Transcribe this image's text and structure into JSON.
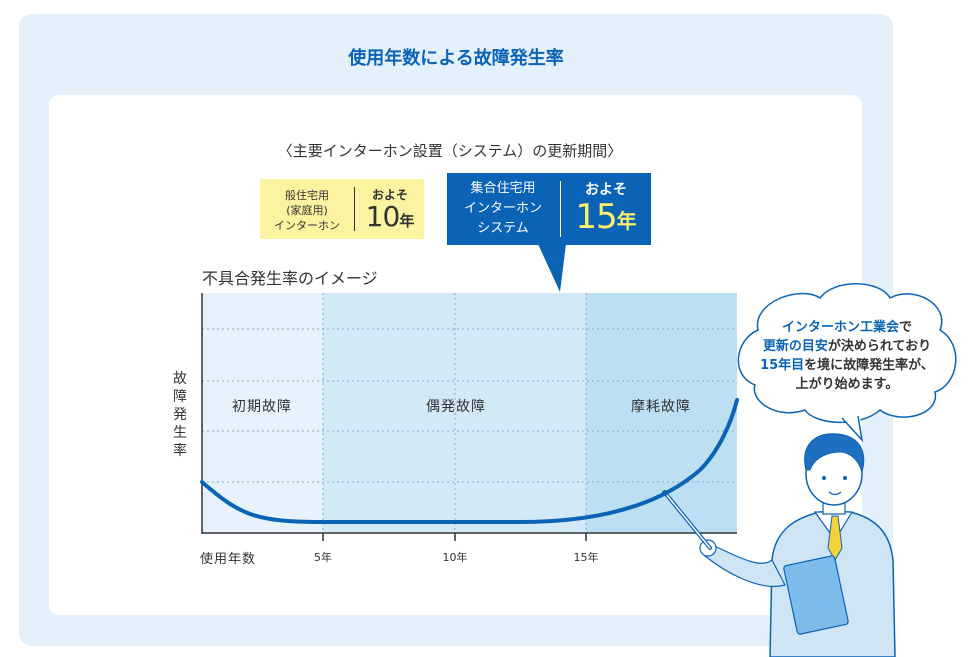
{
  "title": "使用年数による故障発生率",
  "subtitle": "〈主要インターホン設置（システム）の更新期間〉",
  "general_box": {
    "label_lines": [
      "般住宅用",
      "(家庭用)",
      "インターホン"
    ],
    "approx": "およそ",
    "years": "10",
    "unit": "年"
  },
  "multi_box": {
    "label_lines": [
      "集合住宅用",
      "インターホン",
      "システム"
    ],
    "approx": "およそ",
    "years": "15",
    "unit": "年"
  },
  "chart": {
    "caption": "不具合発生率のイメージ",
    "ylabel_chars": [
      "故",
      "障",
      "発",
      "生",
      "率"
    ],
    "xlabel": "使用年数",
    "xticks": [
      "5年",
      "10年",
      "15年"
    ],
    "regions": [
      "初期故障",
      "偶発故障",
      "摩耗故障"
    ]
  },
  "bubble": {
    "line1_hl": "インターホン工業会",
    "line1_rest": "で",
    "line2_hl": "更新の目安",
    "line2_rest": "が決められており",
    "line3_hl": "15年目",
    "line3_rest": "を境に故障発生率が、",
    "line4": "上がり始めます。"
  },
  "colors": {
    "accent": "#0b63b5",
    "highlight_yellow": "#fdf36b",
    "general_box": "#fbf39f",
    "background": "#e4f1fb"
  }
}
